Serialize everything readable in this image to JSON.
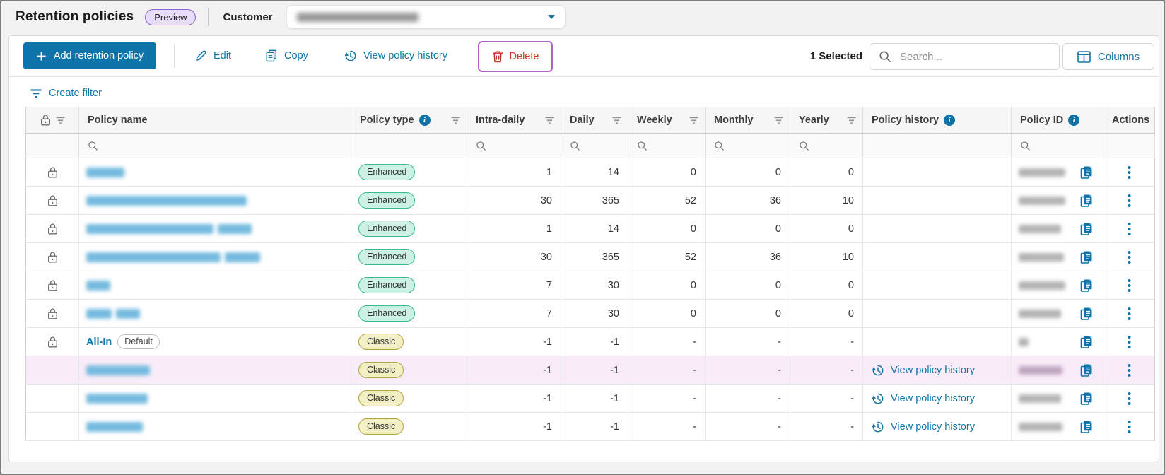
{
  "header": {
    "title": "Retention policies",
    "preview_badge": "Preview",
    "customer_label": "Customer",
    "customer_value_redacted": true
  },
  "toolbar": {
    "add_button": "Add retention policy",
    "edit": "Edit",
    "copy": "Copy",
    "view_policy_history": "View policy history",
    "delete": "Delete",
    "selected_count": "1 Selected",
    "search_placeholder": "Search...",
    "columns_button": "Columns"
  },
  "filter_link": "Create filter",
  "table": {
    "columns": [
      {
        "key": "lock",
        "label": "",
        "info": false,
        "filter_icon": true,
        "search": false
      },
      {
        "key": "name",
        "label": "Policy name",
        "info": false,
        "filter_icon": false,
        "search": true
      },
      {
        "key": "type",
        "label": "Policy type",
        "info": true,
        "filter_icon": true,
        "search": false
      },
      {
        "key": "intra_daily",
        "label": "Intra-daily",
        "info": false,
        "filter_icon": true,
        "search": true
      },
      {
        "key": "daily",
        "label": "Daily",
        "info": false,
        "filter_icon": true,
        "search": true
      },
      {
        "key": "weekly",
        "label": "Weekly",
        "info": false,
        "filter_icon": true,
        "search": true
      },
      {
        "key": "monthly",
        "label": "Monthly",
        "info": false,
        "filter_icon": true,
        "search": true
      },
      {
        "key": "yearly",
        "label": "Yearly",
        "info": false,
        "filter_icon": true,
        "search": true
      },
      {
        "key": "history",
        "label": "Policy history",
        "info": true,
        "filter_icon": false,
        "search": false
      },
      {
        "key": "id",
        "label": "Policy ID",
        "info": true,
        "filter_icon": false,
        "search": true
      },
      {
        "key": "actions",
        "label": "Actions",
        "info": false,
        "filter_icon": false,
        "search": false
      }
    ],
    "history_link_label": "View policy history",
    "rows": [
      {
        "locked": true,
        "name_redacted": true,
        "name_blur_segments": [
          54
        ],
        "type": "Enhanced",
        "intra_daily": "1",
        "daily": "14",
        "weekly": "0",
        "monthly": "0",
        "yearly": "0",
        "history_link": false,
        "id_redacted": true,
        "id_blur_width": 66,
        "selected": false
      },
      {
        "locked": true,
        "name_redacted": true,
        "name_blur_segments": [
          227
        ],
        "type": "Enhanced",
        "intra_daily": "30",
        "daily": "365",
        "weekly": "52",
        "monthly": "36",
        "yearly": "10",
        "history_link": false,
        "id_redacted": true,
        "id_blur_width": 66,
        "selected": false
      },
      {
        "locked": true,
        "name_redacted": true,
        "name_blur_segments": [
          180,
          48
        ],
        "type": "Enhanced",
        "intra_daily": "1",
        "daily": "14",
        "weekly": "0",
        "monthly": "0",
        "yearly": "0",
        "history_link": false,
        "id_redacted": true,
        "id_blur_width": 60,
        "selected": false
      },
      {
        "locked": true,
        "name_redacted": true,
        "name_blur_segments": [
          190,
          50
        ],
        "type": "Enhanced",
        "intra_daily": "30",
        "daily": "365",
        "weekly": "52",
        "monthly": "36",
        "yearly": "10",
        "history_link": false,
        "id_redacted": true,
        "id_blur_width": 64,
        "selected": false
      },
      {
        "locked": true,
        "name_redacted": true,
        "name_blur_segments": [
          34
        ],
        "type": "Enhanced",
        "intra_daily": "7",
        "daily": "30",
        "weekly": "0",
        "monthly": "0",
        "yearly": "0",
        "history_link": false,
        "id_redacted": true,
        "id_blur_width": 66,
        "selected": false
      },
      {
        "locked": true,
        "name_redacted": true,
        "name_blur_segments": [
          36,
          34
        ],
        "type": "Enhanced",
        "intra_daily": "7",
        "daily": "30",
        "weekly": "0",
        "monthly": "0",
        "yearly": "0",
        "history_link": false,
        "id_redacted": true,
        "id_blur_width": 60,
        "selected": false
      },
      {
        "locked": true,
        "name": "All-In",
        "default_badge": "Default",
        "type": "Classic",
        "intra_daily": "-1",
        "daily": "-1",
        "weekly": "-",
        "monthly": "-",
        "yearly": "-",
        "history_link": false,
        "id_redacted": true,
        "id_blur_width": 14,
        "selected": false
      },
      {
        "locked": false,
        "name_redacted": true,
        "name_blur_segments": [
          90
        ],
        "type": "Classic",
        "intra_daily": "-1",
        "daily": "-1",
        "weekly": "-",
        "monthly": "-",
        "yearly": "-",
        "history_link": true,
        "id_redacted": true,
        "id_blur_width": 62,
        "selected": true
      },
      {
        "locked": false,
        "name_redacted": true,
        "name_blur_segments": [
          87
        ],
        "type": "Classic",
        "intra_daily": "-1",
        "daily": "-1",
        "weekly": "-",
        "monthly": "-",
        "yearly": "-",
        "history_link": true,
        "id_redacted": true,
        "id_blur_width": 60,
        "selected": false
      },
      {
        "locked": false,
        "name_redacted": true,
        "name_blur_segments": [
          80
        ],
        "type": "Classic",
        "intra_daily": "-1",
        "daily": "-1",
        "weekly": "-",
        "monthly": "-",
        "yearly": "-",
        "history_link": true,
        "id_redacted": true,
        "id_blur_width": 62,
        "selected": false
      }
    ]
  },
  "colors": {
    "primary_blue": "#0d73a9",
    "link_blue": "#1076a8",
    "delete_red": "#c4392b",
    "highlight_purple": "#b160c8",
    "preview_border_purple": "#8d62d4",
    "preview_bg": "#e7ddfa",
    "selected_row_pink": "#f8ecf8",
    "enhanced_badge_bg": "#cdf2e5",
    "enhanced_badge_border": "#3cb896",
    "classic_badge_bg": "#f2efc5",
    "classic_badge_border": "#aea63c"
  }
}
